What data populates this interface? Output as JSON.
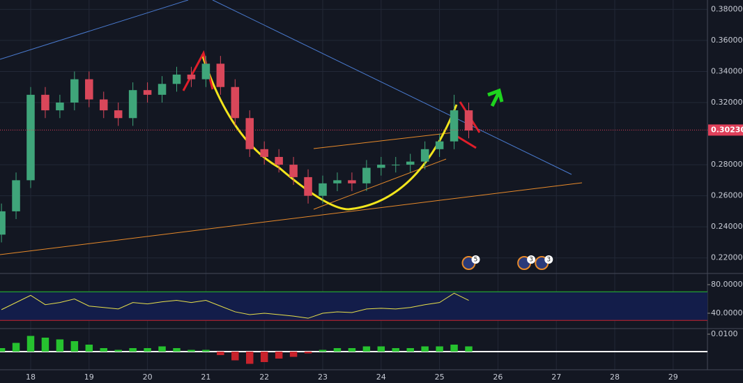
{
  "chart_data": {
    "type": "candlestick",
    "x": [
      17.5,
      17.75,
      18,
      18.25,
      18.5,
      18.75,
      19,
      19.25,
      19.5,
      19.75,
      20,
      20.25,
      20.5,
      20.75,
      21,
      21.25,
      21.5,
      21.75,
      22,
      22.25,
      22.5,
      22.75,
      23,
      23.25,
      23.5,
      23.75,
      24,
      24.25,
      24.5,
      24.75,
      25,
      25.25,
      25.5
    ],
    "open": [
      0.235,
      0.25,
      0.27,
      0.325,
      0.315,
      0.32,
      0.335,
      0.322,
      0.315,
      0.31,
      0.328,
      0.325,
      0.332,
      0.338,
      0.335,
      0.345,
      0.33,
      0.31,
      0.29,
      0.285,
      0.28,
      0.272,
      0.26,
      0.268,
      0.27,
      0.268,
      0.278,
      0.28,
      0.28,
      0.282,
      0.29,
      0.295,
      0.315
    ],
    "high": [
      0.255,
      0.275,
      0.33,
      0.33,
      0.325,
      0.34,
      0.34,
      0.327,
      0.32,
      0.333,
      0.333,
      0.337,
      0.343,
      0.343,
      0.35,
      0.35,
      0.335,
      0.315,
      0.295,
      0.29,
      0.285,
      0.277,
      0.273,
      0.275,
      0.275,
      0.283,
      0.285,
      0.285,
      0.287,
      0.295,
      0.3,
      0.325,
      0.32
    ],
    "low": [
      0.23,
      0.245,
      0.265,
      0.31,
      0.31,
      0.315,
      0.317,
      0.31,
      0.305,
      0.305,
      0.32,
      0.32,
      0.327,
      0.33,
      0.33,
      0.325,
      0.305,
      0.285,
      0.28,
      0.275,
      0.267,
      0.255,
      0.255,
      0.263,
      0.263,
      0.263,
      0.273,
      0.275,
      0.275,
      0.277,
      0.285,
      0.29,
      0.297
    ],
    "close": [
      0.25,
      0.27,
      0.325,
      0.315,
      0.32,
      0.335,
      0.322,
      0.315,
      0.31,
      0.328,
      0.325,
      0.332,
      0.338,
      0.335,
      0.345,
      0.33,
      0.31,
      0.29,
      0.285,
      0.28,
      0.272,
      0.26,
      0.268,
      0.27,
      0.268,
      0.278,
      0.28,
      0.28,
      0.282,
      0.29,
      0.295,
      0.315,
      0.302
    ],
    "colors": {
      "up": "#3fa57a",
      "down": "#d9475a"
    },
    "xlim": [
      17.475,
      29.587
    ],
    "xticks": [
      18,
      19,
      20,
      21,
      22,
      23,
      24,
      25,
      26,
      27,
      28,
      29
    ],
    "ylim": [
      0.21,
      0.386
    ],
    "yticks": [
      {
        "value": 0.38,
        "label": "0.38000"
      },
      {
        "value": 0.36,
        "label": "0.36000"
      },
      {
        "value": 0.34,
        "label": "0.34000"
      },
      {
        "value": 0.32,
        "label": "0.32000"
      },
      {
        "value": 0.28,
        "label": "0.28000"
      },
      {
        "value": 0.26,
        "label": "0.26000"
      },
      {
        "value": 0.24,
        "label": "0.24000"
      },
      {
        "value": 0.22,
        "label": "0.22000"
      }
    ],
    "grid": true,
    "last_price": {
      "value": 0.3023,
      "label": "0.30230"
    },
    "events": [
      {
        "x": 25.5,
        "label": "5"
      },
      {
        "x": 26.45,
        "label": "3"
      },
      {
        "x": 26.75,
        "label": "3"
      }
    ],
    "rsi": {
      "ylim": [
        19.5,
        92.7
      ],
      "yticks": [
        {
          "value": 80,
          "label": "80.0000"
        },
        {
          "value": 40,
          "label": "40.0000"
        }
      ],
      "levels": [
        70,
        30
      ],
      "color": "#e8e04a",
      "values": [
        45,
        55,
        65,
        52,
        55,
        60,
        50,
        48,
        46,
        55,
        53,
        56,
        58,
        55,
        58,
        50,
        42,
        38,
        40,
        38,
        36,
        33,
        40,
        42,
        41,
        46,
        47,
        46,
        48,
        52,
        55,
        68,
        58
      ]
    },
    "macd": {
      "ylim": [
        -0.0104,
        0.0128
      ],
      "yticks": [
        {
          "value": 0.01,
          "label": "0.0100"
        }
      ],
      "colors": {
        "up": "#26c22f",
        "down": "#c8232c"
      },
      "values": [
        0.002,
        0.005,
        0.009,
        0.008,
        0.007,
        0.006,
        0.004,
        0.002,
        0.001,
        0.002,
        0.002,
        0.003,
        0.002,
        0.001,
        0.001,
        -0.002,
        -0.005,
        -0.007,
        -0.006,
        -0.004,
        -0.003,
        -0.001,
        0.001,
        0.002,
        0.002,
        0.003,
        0.003,
        0.002,
        0.002,
        0.003,
        0.003,
        0.004,
        0.003
      ]
    }
  }
}
